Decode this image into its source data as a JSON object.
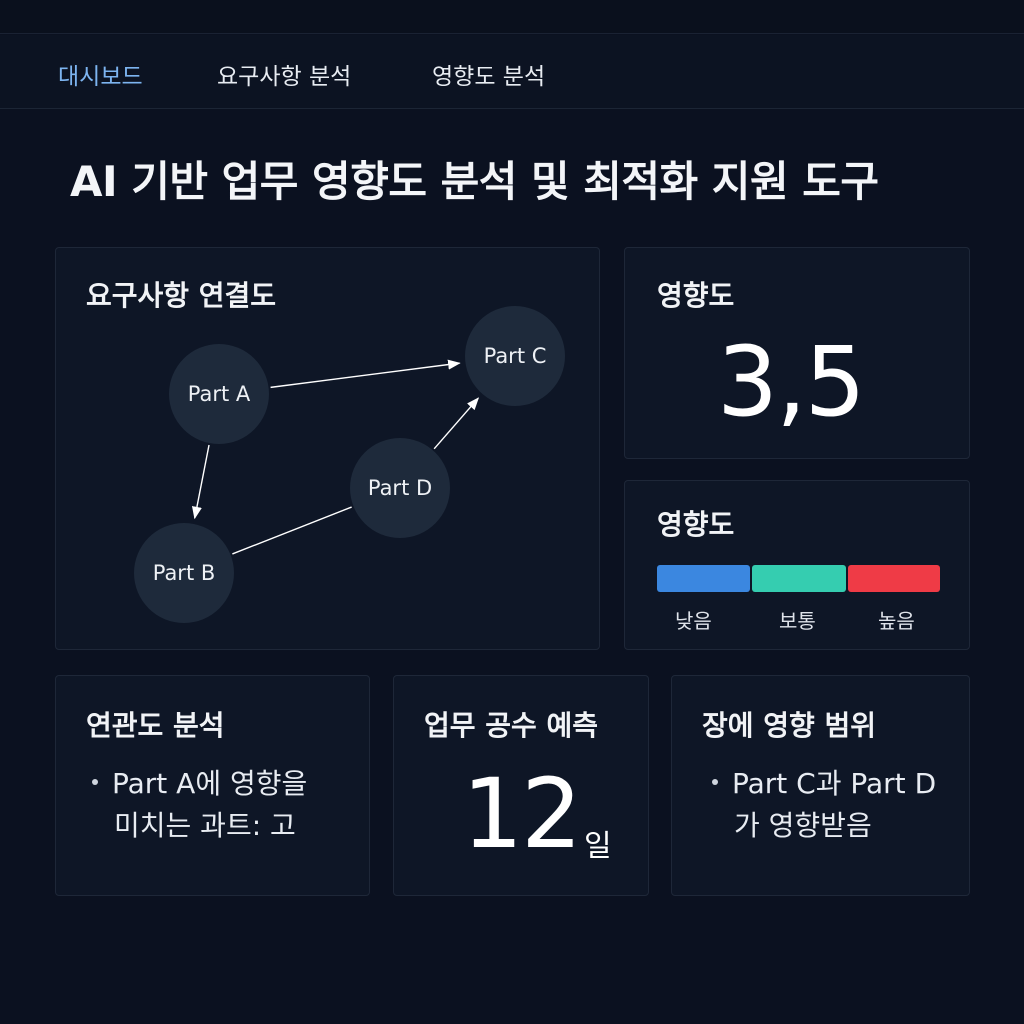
{
  "nav": {
    "items": [
      {
        "label": "대시보드",
        "active": true
      },
      {
        "label": "요구사항 분석",
        "active": false
      },
      {
        "label": "영향도 분석",
        "active": false
      }
    ]
  },
  "page": {
    "title": "AI 기반 업무 영향도 분석 및 최적화 지원 도구"
  },
  "graph_card": {
    "title": "요구사항 연결도",
    "nodes": [
      {
        "id": "A",
        "label": "Part A"
      },
      {
        "id": "B",
        "label": "Part B"
      },
      {
        "id": "C",
        "label": "Part C"
      },
      {
        "id": "D",
        "label": "Part D"
      }
    ],
    "edges": [
      {
        "from": "A",
        "to": "C",
        "arrow": true
      },
      {
        "from": "A",
        "to": "B",
        "arrow": true
      },
      {
        "from": "D",
        "to": "C",
        "arrow": true
      },
      {
        "from": "B",
        "to": "D",
        "arrow": false
      }
    ]
  },
  "impact_score": {
    "title": "영향도",
    "value": "3,5"
  },
  "impact_scale": {
    "title": "영향도",
    "levels": [
      {
        "label": "낮음",
        "color": "#3b87e0"
      },
      {
        "label": "보통",
        "color": "#35cdb0"
      },
      {
        "label": "높음",
        "color": "#ef3b46"
      }
    ]
  },
  "relation_card": {
    "title": "연관도 분석",
    "line1": "Part A에 영향을",
    "line2": "미치는 과트: 고"
  },
  "effort_card": {
    "title": "업무 공수 예측",
    "value": "12",
    "unit": "일"
  },
  "scope_card": {
    "title": "장에 영향 범위",
    "line1": "Part C과 Part D",
    "line2": "가 영향받음"
  }
}
